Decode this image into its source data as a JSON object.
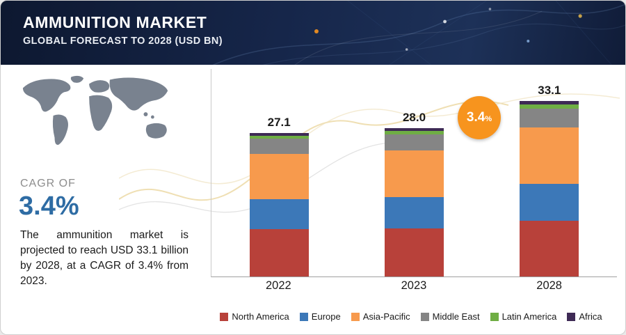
{
  "header": {
    "title": "AMMUNITION MARKET",
    "subtitle": "GLOBAL FORECAST TO 2028 (USD BN)"
  },
  "left_panel": {
    "cagr_label": "CAGR OF",
    "cagr_value": "3.4%",
    "description": "The ammunition market is projected to reach USD 33.1 billion by 2028, at a CAGR of 3.4% from 2023."
  },
  "cagr_badge": {
    "value": "3.4",
    "suffix": "%"
  },
  "chart_data": {
    "type": "bar",
    "stacked": true,
    "title": "Ammunition Market, Global Forecast to 2028 (USD BN)",
    "categories": [
      "2022",
      "2023",
      "2028"
    ],
    "total_labels": [
      "27.1",
      "28.0",
      "33.1"
    ],
    "totals": [
      27.1,
      28.0,
      33.1
    ],
    "series": [
      {
        "name": "North America",
        "color": "#b8413a",
        "values": [
          8.9,
          9.1,
          10.5
        ]
      },
      {
        "name": "Europe",
        "color": "#3c78b8",
        "values": [
          5.7,
          5.9,
          7.0
        ]
      },
      {
        "name": "Asia-Pacific",
        "color": "#f79a4d",
        "values": [
          8.5,
          8.8,
          10.7
        ]
      },
      {
        "name": "Middle East",
        "color": "#858585",
        "values": [
          2.9,
          3.0,
          3.5
        ]
      },
      {
        "name": "Latin America",
        "color": "#6fae44",
        "values": [
          0.6,
          0.7,
          0.8
        ]
      },
      {
        "name": "Africa",
        "color": "#3e2a55",
        "values": [
          0.5,
          0.5,
          0.6
        ]
      }
    ],
    "xlabel": "",
    "ylabel": "",
    "ylim": [
      0,
      36
    ],
    "grid": false,
    "legend_position": "bottom"
  }
}
